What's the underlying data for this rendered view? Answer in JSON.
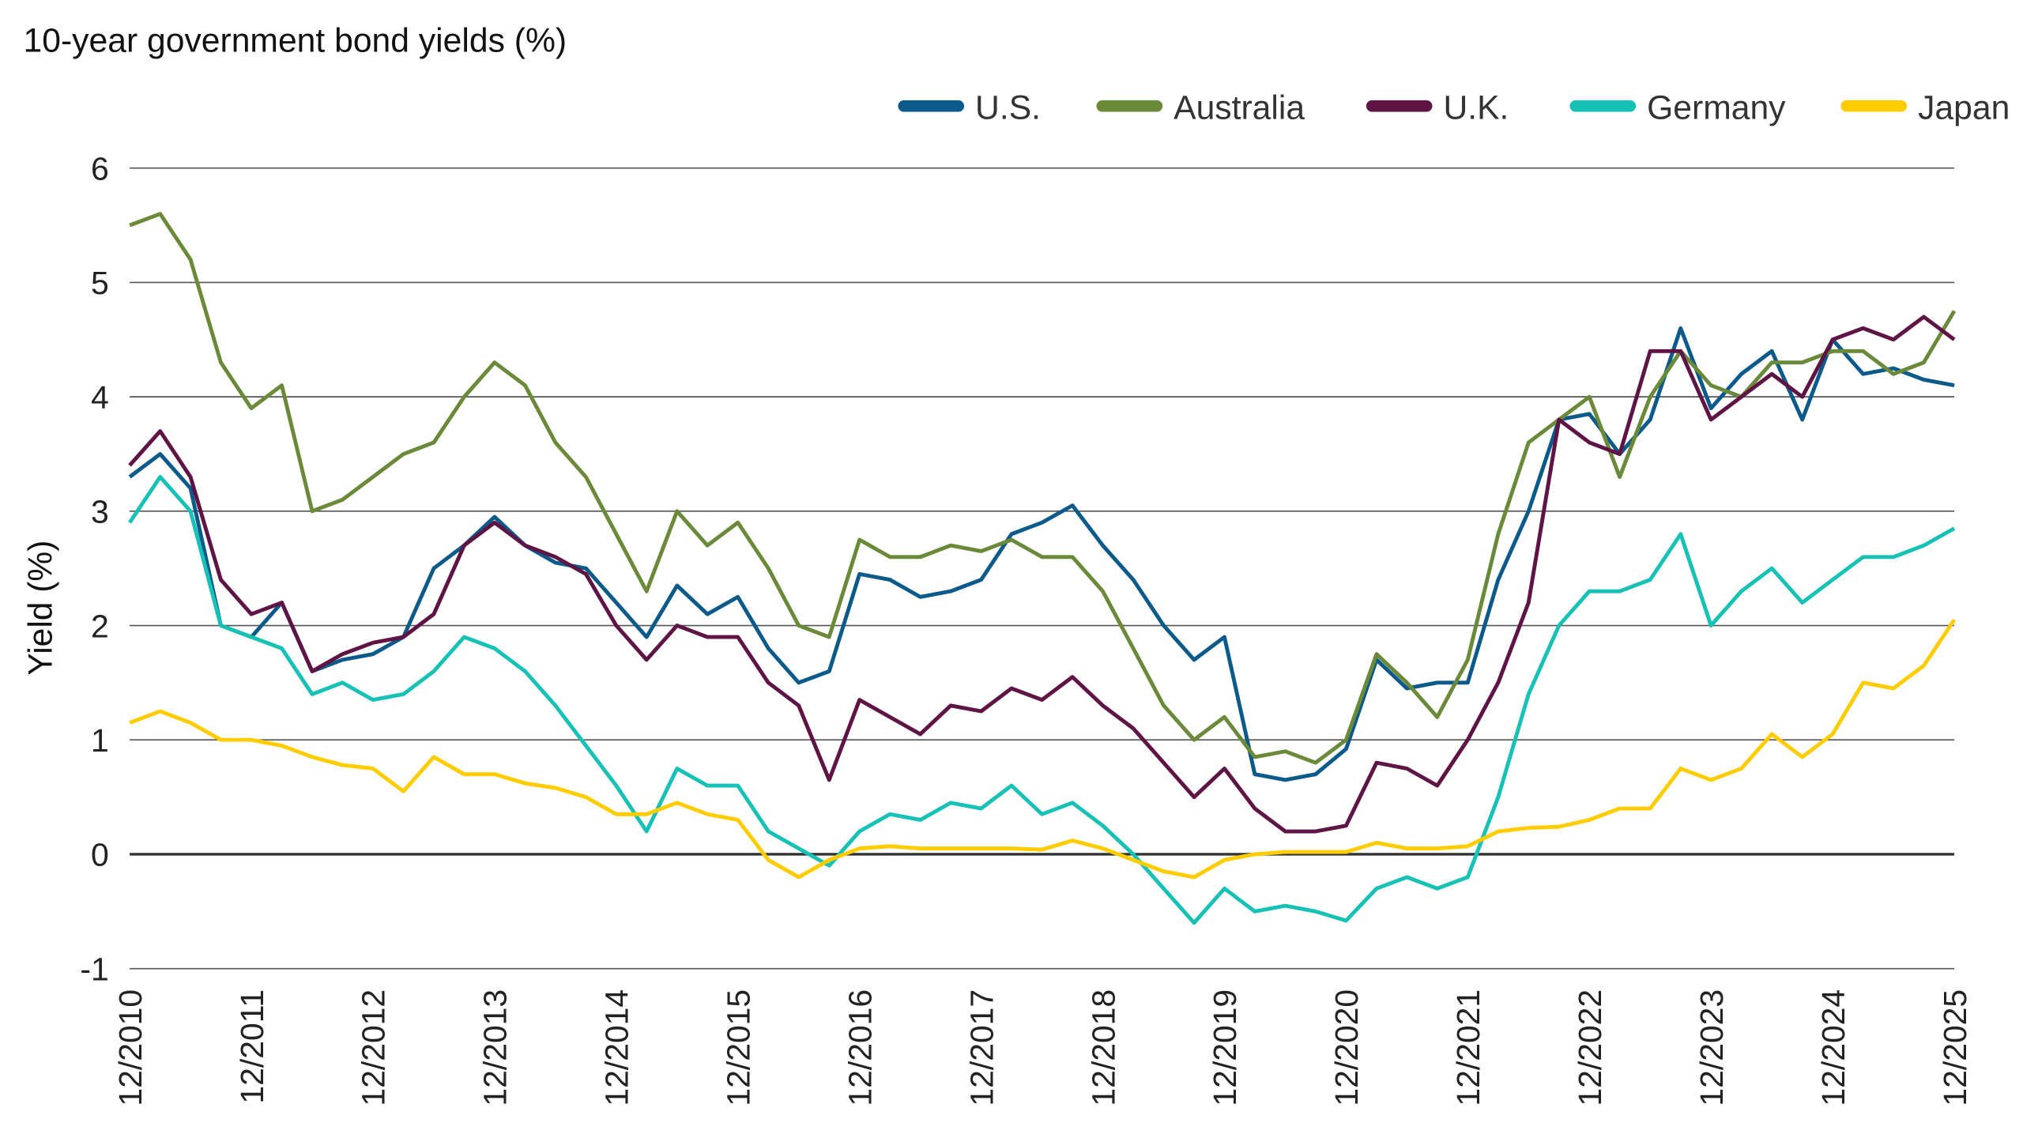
{
  "chart_data": {
    "type": "line",
    "title": "10-year government bond yields (%)",
    "xlabel": "",
    "ylabel": "Yield (%)",
    "ylim": [
      -1,
      6
    ],
    "yticks": [
      "6",
      "5",
      "4",
      "3",
      "2",
      "1",
      "0",
      "-1"
    ],
    "ytick_values": [
      6,
      5,
      4,
      3,
      2,
      1,
      0,
      -1
    ],
    "xticks": [
      "12/2010",
      "12/2011",
      "12/2012",
      "12/2013",
      "12/2014",
      "12/2015",
      "12/2016",
      "12/2017",
      "12/2018",
      "12/2019",
      "12/2020",
      "12/2021",
      "12/2022",
      "12/2023",
      "12/2024",
      "12/2025"
    ],
    "grid": "horizontal",
    "legend_position": "top-right",
    "x": [
      "2010-12",
      "2011-03",
      "2011-06",
      "2011-09",
      "2011-12",
      "2012-03",
      "2012-06",
      "2012-09",
      "2012-12",
      "2013-03",
      "2013-06",
      "2013-09",
      "2013-12",
      "2014-03",
      "2014-06",
      "2014-09",
      "2014-12",
      "2015-03",
      "2015-06",
      "2015-09",
      "2015-12",
      "2016-03",
      "2016-06",
      "2016-09",
      "2016-12",
      "2017-03",
      "2017-06",
      "2017-09",
      "2017-12",
      "2018-03",
      "2018-06",
      "2018-09",
      "2018-12",
      "2019-03",
      "2019-06",
      "2019-09",
      "2019-12",
      "2020-03",
      "2020-06",
      "2020-09",
      "2020-12",
      "2021-03",
      "2021-06",
      "2021-09",
      "2021-12",
      "2022-03",
      "2022-06",
      "2022-09",
      "2022-12",
      "2023-03",
      "2023-06",
      "2023-09",
      "2023-12",
      "2024-03",
      "2024-06",
      "2024-09",
      "2024-12",
      "2025-03",
      "2025-06",
      "2025-09",
      "2025-12"
    ],
    "series": [
      {
        "name": "U.S.",
        "color": "#0b5a8a",
        "values": [
          3.3,
          3.5,
          3.2,
          2.0,
          1.9,
          2.2,
          1.6,
          1.7,
          1.75,
          1.9,
          2.5,
          2.7,
          2.95,
          2.7,
          2.55,
          2.5,
          2.2,
          1.9,
          2.35,
          2.1,
          2.25,
          1.8,
          1.5,
          1.6,
          2.45,
          2.4,
          2.25,
          2.3,
          2.4,
          2.8,
          2.9,
          3.05,
          2.7,
          2.4,
          2.0,
          1.7,
          1.9,
          0.7,
          0.65,
          0.7,
          0.92,
          1.7,
          1.45,
          1.5,
          1.5,
          2.4,
          3.0,
          3.8,
          3.85,
          3.5,
          3.8,
          4.6,
          3.9,
          4.2,
          4.4,
          3.8,
          4.5,
          4.2,
          4.25,
          4.15,
          4.1
        ]
      },
      {
        "name": "Australia",
        "color": "#6a8a3a",
        "values": [
          5.5,
          5.6,
          5.2,
          4.3,
          3.9,
          4.1,
          3.0,
          3.1,
          3.3,
          3.5,
          3.6,
          4.0,
          4.3,
          4.1,
          3.6,
          3.3,
          2.8,
          2.3,
          3.0,
          2.7,
          2.9,
          2.5,
          2.0,
          1.9,
          2.75,
          2.6,
          2.6,
          2.7,
          2.65,
          2.75,
          2.6,
          2.6,
          2.3,
          1.8,
          1.3,
          1.0,
          1.2,
          0.85,
          0.9,
          0.8,
          1.0,
          1.75,
          1.5,
          1.2,
          1.7,
          2.8,
          3.6,
          3.8,
          4.0,
          3.3,
          4.0,
          4.4,
          4.1,
          4.0,
          4.3,
          4.3,
          4.4,
          4.4,
          4.2,
          4.3,
          4.75
        ]
      },
      {
        "name": "U.K.",
        "color": "#5e1444",
        "values": [
          3.4,
          3.7,
          3.3,
          2.4,
          2.1,
          2.2,
          1.6,
          1.75,
          1.85,
          1.9,
          2.1,
          2.7,
          2.9,
          2.7,
          2.6,
          2.45,
          2.0,
          1.7,
          2.0,
          1.9,
          1.9,
          1.5,
          1.3,
          0.65,
          1.35,
          1.2,
          1.05,
          1.3,
          1.25,
          1.45,
          1.35,
          1.55,
          1.3,
          1.1,
          0.8,
          0.5,
          0.75,
          0.4,
          0.2,
          0.2,
          0.25,
          0.8,
          0.75,
          0.6,
          1.0,
          1.5,
          2.2,
          3.8,
          3.6,
          3.5,
          4.4,
          4.4,
          3.8,
          4.0,
          4.2,
          4.0,
          4.5,
          4.6,
          4.5,
          4.7,
          4.5
        ]
      },
      {
        "name": "Germany",
        "color": "#17c1b5",
        "values": [
          2.9,
          3.3,
          3.0,
          2.0,
          1.9,
          1.8,
          1.4,
          1.5,
          1.35,
          1.4,
          1.6,
          1.9,
          1.8,
          1.6,
          1.3,
          0.95,
          0.6,
          0.2,
          0.75,
          0.6,
          0.6,
          0.2,
          0.05,
          -0.1,
          0.2,
          0.35,
          0.3,
          0.45,
          0.4,
          0.6,
          0.35,
          0.45,
          0.25,
          0.0,
          -0.3,
          -0.6,
          -0.3,
          -0.5,
          -0.45,
          -0.5,
          -0.58,
          -0.3,
          -0.2,
          -0.3,
          -0.2,
          0.5,
          1.4,
          2.0,
          2.3,
          2.3,
          2.4,
          2.8,
          2.0,
          2.3,
          2.5,
          2.2,
          2.4,
          2.6,
          2.6,
          2.7,
          2.85
        ]
      },
      {
        "name": "Japan",
        "color": "#ffcc00",
        "values": [
          1.15,
          1.25,
          1.15,
          1.0,
          1.0,
          0.95,
          0.85,
          0.78,
          0.75,
          0.55,
          0.85,
          0.7,
          0.7,
          0.62,
          0.58,
          0.5,
          0.35,
          0.35,
          0.45,
          0.35,
          0.3,
          -0.05,
          -0.2,
          -0.05,
          0.05,
          0.07,
          0.05,
          0.05,
          0.05,
          0.05,
          0.04,
          0.12,
          0.05,
          -0.05,
          -0.15,
          -0.2,
          -0.05,
          0.0,
          0.02,
          0.02,
          0.02,
          0.1,
          0.05,
          0.05,
          0.07,
          0.2,
          0.23,
          0.24,
          0.3,
          0.4,
          0.4,
          0.75,
          0.65,
          0.75,
          1.05,
          0.85,
          1.05,
          1.5,
          1.45,
          1.65,
          2.05
        ]
      }
    ]
  }
}
